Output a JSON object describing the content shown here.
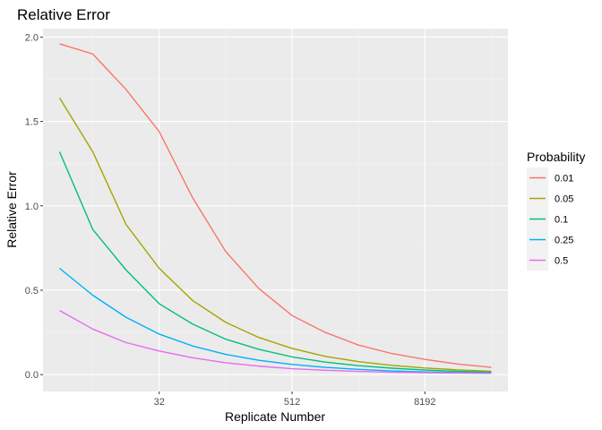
{
  "chart_data": {
    "type": "line",
    "title": "Relative Error",
    "xlabel": "Replicate Number",
    "ylabel": "Relative Error",
    "x_scale": "log2",
    "x": [
      4,
      8,
      16,
      32,
      64,
      128,
      256,
      512,
      1024,
      2048,
      4096,
      8192,
      16384,
      32768
    ],
    "xticks": [
      32,
      512,
      8192
    ],
    "xtick_labels": [
      "32",
      "512",
      "8192"
    ],
    "xlim": [
      2.83,
      46341
    ],
    "yticks": [
      0.0,
      0.5,
      1.0,
      1.5,
      2.0
    ],
    "ytick_labels": [
      "0.0",
      "0.5",
      "1.0",
      "1.5",
      "2.0"
    ],
    "ylim": [
      -0.1,
      2.05
    ],
    "grid": true,
    "legend": {
      "title": "Probability",
      "position": "right"
    },
    "series": [
      {
        "name": "0.01",
        "color": "#F8766D",
        "values": [
          1.96,
          1.9,
          1.69,
          1.44,
          1.05,
          0.73,
          0.51,
          0.35,
          0.25,
          0.175,
          0.125,
          0.09,
          0.062,
          0.043
        ]
      },
      {
        "name": "0.05",
        "color": "#A3A500",
        "values": [
          1.64,
          1.32,
          0.89,
          0.63,
          0.44,
          0.31,
          0.22,
          0.155,
          0.108,
          0.077,
          0.055,
          0.039,
          0.028,
          0.02
        ]
      },
      {
        "name": "0.1",
        "color": "#00BF7D",
        "values": [
          1.32,
          0.86,
          0.62,
          0.42,
          0.3,
          0.21,
          0.15,
          0.105,
          0.074,
          0.053,
          0.038,
          0.027,
          0.019,
          0.014
        ]
      },
      {
        "name": "0.25",
        "color": "#00B0F6",
        "values": [
          0.63,
          0.47,
          0.34,
          0.24,
          0.17,
          0.12,
          0.085,
          0.06,
          0.043,
          0.031,
          0.022,
          0.016,
          0.012,
          0.009
        ]
      },
      {
        "name": "0.5",
        "color": "#E76BF3",
        "values": [
          0.38,
          0.27,
          0.19,
          0.14,
          0.1,
          0.07,
          0.05,
          0.035,
          0.026,
          0.019,
          0.014,
          0.011,
          0.009,
          0.007
        ]
      }
    ]
  }
}
